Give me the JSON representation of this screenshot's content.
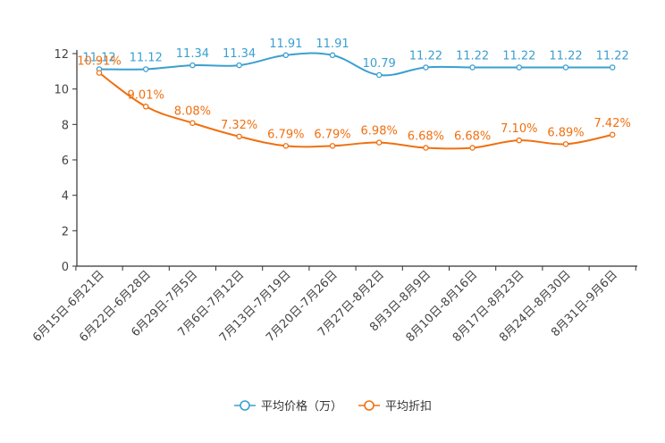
{
  "chart_data": {
    "type": "line",
    "title": "",
    "xlabel": "",
    "ylabel": "",
    "ylim": [
      0,
      12
    ],
    "yticks": [
      0,
      2,
      4,
      6,
      8,
      10,
      12
    ],
    "grid": false,
    "legend_position": "bottom-center",
    "categories": [
      "6月15日-6月21日",
      "6月22日-6月28日",
      "6月29日-7月5日",
      "7月6日-7月12日",
      "7月13日-7月19日",
      "7月20日-7月26日",
      "7月27日-8月2日",
      "8月3日-8月9日",
      "8月10日-8月16日",
      "8月17日-8月23日",
      "8月24日-8月30日",
      "8月31日-9月6日"
    ],
    "series": [
      {
        "name": "平均价格（万）",
        "color": "#3a9fd0",
        "values": [
          11.12,
          11.12,
          11.34,
          11.34,
          11.91,
          11.91,
          10.79,
          11.22,
          11.22,
          11.22,
          11.22,
          11.22
        ],
        "labels": [
          "11.12",
          "11.12",
          "11.34",
          "11.34",
          "11.91",
          "11.91",
          "10.79",
          "11.22",
          "11.22",
          "11.22",
          "11.22",
          "11.22"
        ]
      },
      {
        "name": "平均折扣",
        "color": "#f07010",
        "values": [
          10.91,
          9.01,
          8.08,
          7.32,
          6.79,
          6.79,
          6.98,
          6.68,
          6.68,
          7.1,
          6.89,
          7.42
        ],
        "labels": [
          "10.91%",
          "9.01%",
          "8.08%",
          "7.32%",
          "6.79%",
          "6.79%",
          "6.98%",
          "6.68%",
          "6.68%",
          "7.10%",
          "6.89%",
          "7.42%"
        ]
      }
    ]
  }
}
